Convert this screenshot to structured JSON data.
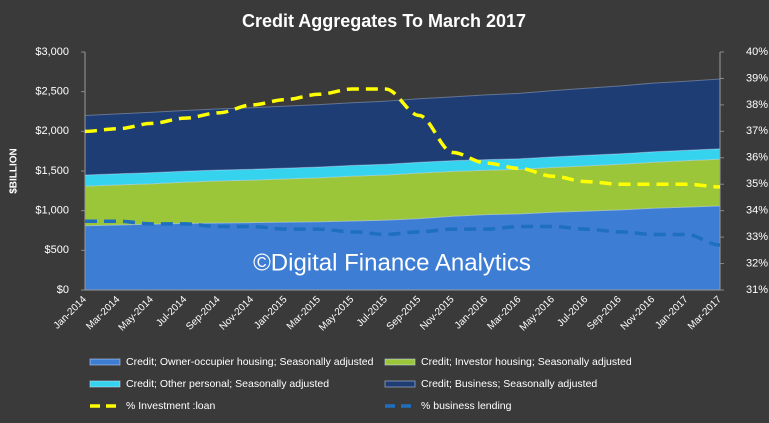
{
  "chart_data": {
    "type": "stacked-area-line",
    "title": "Credit Aggregates To March 2017",
    "y_label": "$BILLION",
    "watermark": "©Digital Finance Analytics",
    "categories": [
      "Jan-2014",
      "Mar-2014",
      "May-2014",
      "Jul-2014",
      "Sep-2014",
      "Nov-2014",
      "Jan-2015",
      "Mar-2015",
      "May-2015",
      "Jul-2015",
      "Sep-2015",
      "Nov-2015",
      "Jan-2016",
      "Mar-2016",
      "May-2016",
      "Jul-2016",
      "Sep-2016",
      "Nov-2016",
      "Jan-2017",
      "Mar-2017"
    ],
    "ylim": [
      0,
      3000
    ],
    "yticks": [
      {
        "value": 0,
        "label": "$0"
      },
      {
        "value": 500,
        "label": "$500"
      },
      {
        "value": 1000,
        "label": "$1,000"
      },
      {
        "value": 1500,
        "label": "$1,500"
      },
      {
        "value": 2000,
        "label": "$2,000"
      },
      {
        "value": 2500,
        "label": "$2,500"
      },
      {
        "value": 3000,
        "label": "$3,000"
      }
    ],
    "y2lim": [
      31,
      40
    ],
    "y2ticks": [
      {
        "value": 31,
        "label": "31%"
      },
      {
        "value": 32,
        "label": "32%"
      },
      {
        "value": 33,
        "label": "33%"
      },
      {
        "value": 34,
        "label": "34%"
      },
      {
        "value": 35,
        "label": "35%"
      },
      {
        "value": 36,
        "label": "36%"
      },
      {
        "value": 37,
        "label": "37%"
      },
      {
        "value": 38,
        "label": "38%"
      },
      {
        "value": 39,
        "label": "39%"
      },
      {
        "value": 40,
        "label": "40%"
      }
    ],
    "series": [
      {
        "name": "Credit; Owner-occupier housing; Seasonally adjusted",
        "color": "#3d7dd4",
        "kind": "area",
        "values": [
          810,
          820,
          830,
          840,
          845,
          850,
          855,
          860,
          870,
          880,
          900,
          930,
          950,
          960,
          980,
          995,
          1010,
          1030,
          1045,
          1060
        ]
      },
      {
        "name": "Credit; Investor housing; Seasonally adjusted",
        "color": "#9cc63a",
        "kind": "area",
        "values": [
          500,
          505,
          510,
          520,
          530,
          535,
          545,
          555,
          565,
          570,
          575,
          565,
          560,
          560,
          565,
          570,
          575,
          580,
          585,
          590
        ]
      },
      {
        "name": "Credit; Other personal; Seasonally adjusted",
        "color": "#36d3ee",
        "kind": "area",
        "values": [
          140,
          140,
          140,
          138,
          138,
          137,
          137,
          136,
          136,
          135,
          135,
          135,
          134,
          134,
          133,
          133,
          132,
          132,
          131,
          130
        ]
      },
      {
        "name": "Credit; Business; Seasonally adjusted",
        "color": "#1e3d74",
        "kind": "area",
        "values": [
          750,
          755,
          760,
          765,
          770,
          775,
          780,
          785,
          790,
          795,
          800,
          805,
          815,
          825,
          835,
          845,
          855,
          865,
          870,
          880
        ]
      },
      {
        "name": "% Investment :loan",
        "color": "#ffff00",
        "kind": "line",
        "axis": "y2",
        "values": [
          37.0,
          37.1,
          37.3,
          37.5,
          37.7,
          38.0,
          38.2,
          38.4,
          38.6,
          38.6,
          37.6,
          36.2,
          35.8,
          35.6,
          35.3,
          35.1,
          35.0,
          35.0,
          35.0,
          34.9
        ]
      },
      {
        "name": "% business lending",
        "color": "#1f6fc0",
        "kind": "line",
        "axis": "y2",
        "values": [
          33.6,
          33.6,
          33.5,
          33.5,
          33.4,
          33.4,
          33.3,
          33.3,
          33.2,
          33.1,
          33.2,
          33.3,
          33.3,
          33.4,
          33.4,
          33.3,
          33.2,
          33.1,
          33.1,
          32.7
        ]
      }
    ]
  }
}
